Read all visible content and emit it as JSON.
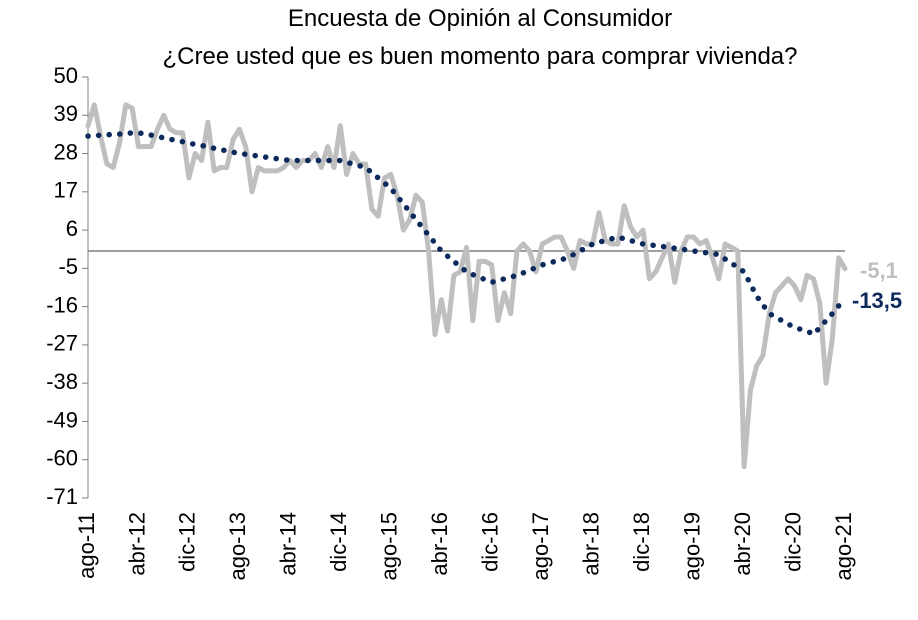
{
  "chart_data": {
    "type": "line",
    "title": "Encuesta de Opinión al Consumidor",
    "subtitle": "¿Cree usted que es buen momento para comprar vivienda?",
    "categories": [
      "ago-11",
      null,
      null,
      null,
      null,
      null,
      null,
      null,
      "abr-12",
      null,
      null,
      null,
      null,
      null,
      null,
      null,
      "dic-12",
      null,
      null,
      null,
      null,
      null,
      null,
      null,
      "ago-13",
      null,
      null,
      null,
      null,
      null,
      null,
      null,
      "abr-14",
      null,
      null,
      null,
      null,
      null,
      null,
      null,
      "dic-14",
      null,
      null,
      null,
      null,
      null,
      null,
      null,
      "ago-15",
      null,
      null,
      null,
      null,
      null,
      null,
      null,
      "abr-16",
      null,
      null,
      null,
      null,
      null,
      null,
      null,
      "dic-16",
      null,
      null,
      null,
      null,
      null,
      null,
      null,
      "ago-17",
      null,
      null,
      null,
      null,
      null,
      null,
      null,
      "abr-18",
      null,
      null,
      null,
      null,
      null,
      null,
      null,
      "dic-18",
      null,
      null,
      null,
      null,
      null,
      null,
      null,
      "ago-19",
      null,
      null,
      null,
      null,
      null,
      null,
      null,
      "abr-20",
      null,
      null,
      null,
      null,
      null,
      null,
      null,
      "dic-20",
      null,
      null,
      null,
      null,
      null,
      null,
      null,
      "ago-21"
    ],
    "series": [
      {
        "color": "#bfbfbf",
        "dashed": false,
        "values": [
          36,
          42,
          33,
          25,
          24,
          31,
          42,
          41,
          30,
          30,
          30,
          35,
          39,
          35,
          34,
          34,
          21,
          28,
          26,
          37,
          23,
          24,
          24,
          32,
          35,
          30,
          17,
          24,
          23,
          23,
          23,
          24,
          26,
          24,
          26,
          26,
          28,
          24,
          30,
          24,
          36,
          22,
          28,
          25,
          25,
          12,
          10,
          21,
          22,
          16,
          6,
          9,
          16,
          14,
          0,
          -24,
          -14,
          -23,
          -7,
          -6,
          1,
          -20,
          -3,
          -3,
          -4,
          -20,
          -12,
          -18,
          0,
          2,
          0,
          -6,
          2,
          3,
          4,
          4,
          0,
          -5,
          3,
          2,
          2,
          11,
          3,
          2,
          2,
          13,
          7,
          4,
          6,
          -8,
          -6,
          -2,
          2,
          -9,
          0,
          4,
          4,
          2,
          3,
          -2,
          -8,
          2,
          1,
          0,
          -62,
          -40,
          -33,
          -30,
          -18,
          -12,
          -10,
          -8,
          -10,
          -14,
          -7,
          -8,
          -15,
          -38,
          -25,
          -2,
          -5.1
        ],
        "end_label": "-5,1"
      },
      {
        "color": "#0d2a5c",
        "dashed": true,
        "values": [
          33,
          33.1,
          33.3,
          33.4,
          33.5,
          33.6,
          33.8,
          33.9,
          34,
          33.6,
          33.3,
          32.9,
          32.5,
          32.1,
          31.8,
          31.4,
          31,
          30.6,
          30.3,
          29.9,
          29.5,
          29.1,
          28.8,
          28.4,
          28,
          27.8,
          27.5,
          27.3,
          27,
          26.8,
          26.5,
          26.3,
          26,
          26,
          26,
          26,
          26,
          26,
          26,
          26,
          26,
          25.5,
          25,
          24.5,
          24,
          22.5,
          21,
          19.5,
          18,
          15.8,
          13.5,
          11.3,
          9,
          6.8,
          4.5,
          2.3,
          0,
          -1.5,
          -3,
          -4.5,
          -6,
          -6.8,
          -7.5,
          -8.3,
          -9,
          -8.5,
          -8,
          -7.5,
          -7,
          -6.3,
          -5.5,
          -4.8,
          -4,
          -3.5,
          -3,
          -2.5,
          -2,
          -1,
          0,
          1,
          2,
          2.5,
          3,
          3.5,
          4,
          3.5,
          3,
          2.5,
          2,
          1.8,
          1.5,
          1.3,
          1,
          0.8,
          0.5,
          0.3,
          0,
          -0.3,
          -0.5,
          -0.8,
          -1,
          -2.3,
          -3.5,
          -4.8,
          -6,
          -9.5,
          -13,
          -15.5,
          -18,
          -19,
          -20,
          -21,
          -22,
          -22.5,
          -23,
          -24,
          -22,
          -20,
          -18,
          -15.8,
          -13.5
        ],
        "end_label": "-13,5"
      }
    ],
    "ylim": [
      -71,
      50
    ],
    "yticks": [
      50,
      39,
      28,
      17,
      6,
      -5,
      -16,
      -27,
      -38,
      -49,
      -60,
      -71
    ],
    "grid": false
  }
}
